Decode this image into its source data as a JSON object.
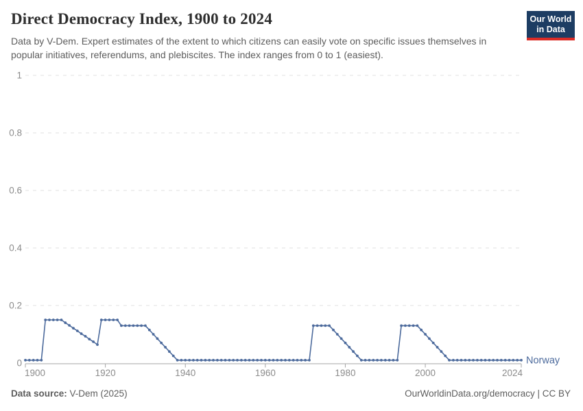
{
  "header": {
    "title": "Direct Democracy Index, 1900 to 2024",
    "subtitle": "Data by V-Dem. Expert estimates of the extent to which citizens can easily vote on specific issues themselves in popular initiatives, referendums, and plebiscites. The index ranges from 0 to 1 (easiest).",
    "logo": {
      "line1": "Our World",
      "line2": "in Data"
    }
  },
  "chart_data": {
    "type": "line",
    "title": "Direct Democracy Index, 1900 to 2024",
    "xlabel": "",
    "ylabel": "",
    "xlim": [
      1900,
      2024
    ],
    "ylim": [
      0,
      1
    ],
    "x_ticks": [
      1900,
      1920,
      1940,
      1960,
      1980,
      2000,
      2024
    ],
    "y_ticks": [
      0,
      0.2,
      0.4,
      0.6,
      0.8,
      1
    ],
    "grid": "dashed-horizontal",
    "legend": "end-of-line-label",
    "series": [
      {
        "name": "Norway",
        "color": "#4c6a9c",
        "x_start": 1900,
        "values": [
          0.01,
          0.01,
          0.01,
          0.01,
          0.01,
          0.15,
          0.15,
          0.15,
          0.15,
          0.15,
          0.14,
          0.131,
          0.121,
          0.112,
          0.102,
          0.093,
          0.083,
          0.074,
          0.064,
          0.15,
          0.15,
          0.15,
          0.15,
          0.15,
          0.13,
          0.13,
          0.13,
          0.13,
          0.13,
          0.13,
          0.13,
          0.115,
          0.1,
          0.085,
          0.07,
          0.055,
          0.04,
          0.025,
          0.01,
          0.01,
          0.01,
          0.01,
          0.01,
          0.01,
          0.01,
          0.01,
          0.01,
          0.01,
          0.01,
          0.01,
          0.01,
          0.01,
          0.01,
          0.01,
          0.01,
          0.01,
          0.01,
          0.01,
          0.01,
          0.01,
          0.01,
          0.01,
          0.01,
          0.01,
          0.01,
          0.01,
          0.01,
          0.01,
          0.01,
          0.01,
          0.01,
          0.01,
          0.13,
          0.13,
          0.13,
          0.13,
          0.13,
          0.115,
          0.1,
          0.085,
          0.07,
          0.055,
          0.04,
          0.025,
          0.01,
          0.01,
          0.01,
          0.01,
          0.01,
          0.01,
          0.01,
          0.01,
          0.01,
          0.01,
          0.13,
          0.13,
          0.13,
          0.13,
          0.13,
          0.115,
          0.1,
          0.085,
          0.07,
          0.055,
          0.04,
          0.025,
          0.01,
          0.01,
          0.01,
          0.01,
          0.01,
          0.01,
          0.01,
          0.01,
          0.01,
          0.01,
          0.01,
          0.01,
          0.01,
          0.01,
          0.01,
          0.01,
          0.01,
          0.01,
          0.01
        ]
      }
    ]
  },
  "footer": {
    "source_label": "Data source:",
    "source_value": " V-Dem (2025)",
    "credit": "OurWorldinData.org/democracy | CC BY"
  },
  "colors": {
    "series_blue": "#4c6a9c",
    "logo_navy": "#1d3d63",
    "logo_red": "#dc2c26",
    "grid_gray": "#e2e2e2",
    "axis_gray": "#a5a5a5",
    "tick_text": "#8b8b8b",
    "subtitle_text": "#5c5c5c"
  }
}
